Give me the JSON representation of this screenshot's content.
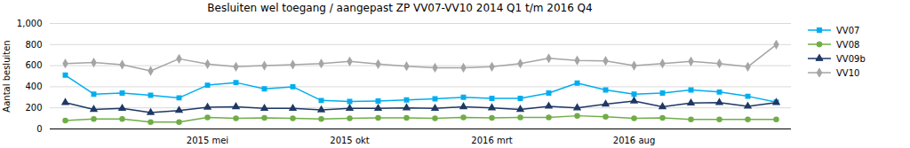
{
  "chart_data": {
    "type": "line",
    "title": "Besluiten wel toegang / aangepast ZP VV07-VV10 2014 Q1 t/m 2016 Q4",
    "ylabel": "Aantal besluiten",
    "categories": [
      null,
      null,
      null,
      null,
      null,
      "2015 mei",
      null,
      null,
      null,
      null,
      "2015 okt",
      null,
      null,
      null,
      null,
      "2016 mrt",
      null,
      null,
      null,
      null,
      "2016 aug",
      null,
      null,
      null,
      null,
      null
    ],
    "series": [
      {
        "name": "VV07",
        "color": "#00AEEF",
        "marker": "square",
        "values": [
          510,
          330,
          340,
          320,
          295,
          415,
          440,
          380,
          400,
          270,
          260,
          265,
          275,
          285,
          300,
          290,
          290,
          340,
          435,
          370,
          330,
          340,
          370,
          350,
          310,
          255
        ]
      },
      {
        "name": "VV08",
        "color": "#70AD47",
        "marker": "circle",
        "values": [
          80,
          95,
          95,
          65,
          65,
          110,
          100,
          105,
          100,
          95,
          100,
          105,
          105,
          100,
          110,
          105,
          110,
          110,
          125,
          115,
          100,
          105,
          90,
          90,
          90,
          90
        ]
      },
      {
        "name": "VV09b",
        "color": "#1F3864",
        "marker": "triangle",
        "values": [
          250,
          185,
          195,
          155,
          175,
          205,
          210,
          195,
          195,
          180,
          195,
          195,
          200,
          195,
          210,
          200,
          185,
          215,
          200,
          235,
          265,
          210,
          245,
          250,
          215,
          250
        ]
      },
      {
        "name": "VV10",
        "color": "#A5A5A5",
        "marker": "diamond",
        "values": [
          620,
          630,
          610,
          550,
          665,
          615,
          590,
          600,
          610,
          620,
          640,
          615,
          595,
          580,
          580,
          590,
          620,
          670,
          650,
          645,
          600,
          620,
          640,
          620,
          590,
          800
        ]
      }
    ],
    "ylim": [
      0,
      1000
    ],
    "yticks": [
      0,
      200,
      400,
      600,
      800,
      1000
    ],
    "grid": true,
    "legend": "right"
  }
}
